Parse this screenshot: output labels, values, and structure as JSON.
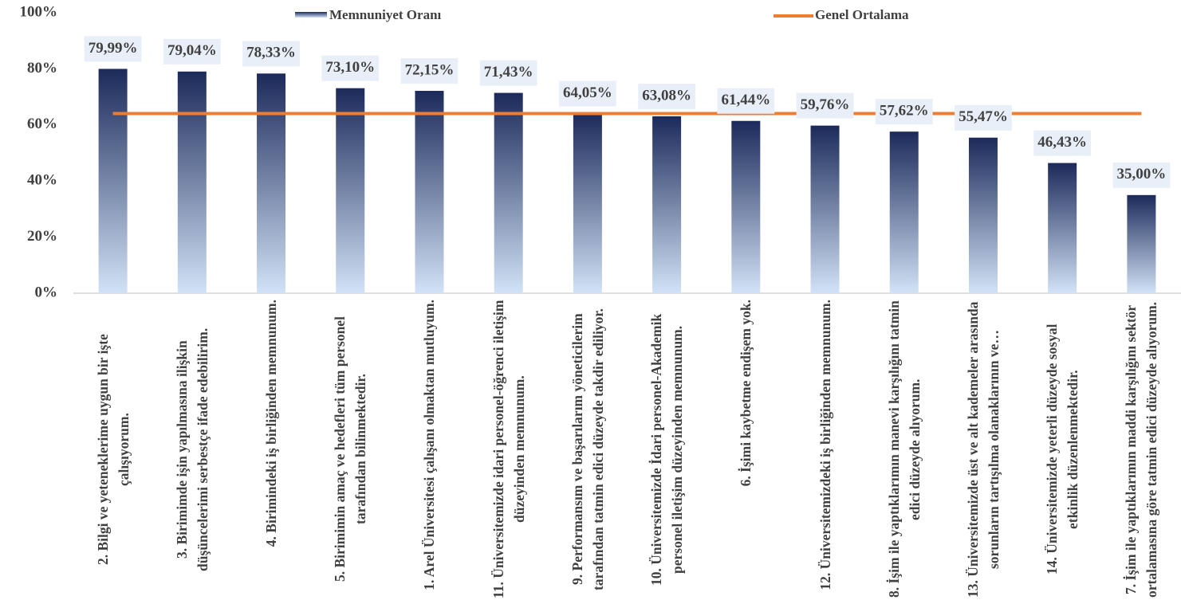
{
  "chart_data": {
    "type": "bar",
    "categories": [
      "2. Bilgi ve yeteneklerime uygun bir işte çalışıyorum.",
      "3. Birimimde işin yapılmasına ilişkin düşüncelerimi serbestçe ifade edebilirim.",
      "4. Birimindeki iş birliğinden memnunum.",
      "5. Birimimin amaç ve hedefleri tüm personel tarafından bilinmektedir.",
      "1. Arel Üniversitesi çalışanı olmaktan mutluyum.",
      "11. Üniversitemizde idari personel-öğrenci iletişim düzeyinden memnunum.",
      "9. Performansım ve başarılarım yöneticilerim tarafından tatmin edici düzeyde takdir ediliyor.",
      "10. Üniversitemizde İdari personel-Akademik personel iletişim düzeyinden memnunum.",
      "6. İşimi kaybetme endişem yok.",
      "12. Üniversitemizdeki iş birliğinden memnunum.",
      "8. İşim ile yaptıklarımın manevi karşılığını tatmin edici düzeyde alıyorum.",
      "13. Üniversitemizde üst ve alt kademeler arasında sorunların tartışılma olanaklarının ve…",
      "14. Üniversitemizde yeterli düzeyde sosyal etkinlik düzenlenmektedir.",
      "7. İşim ile yaptıklarımın maddi karşılığını sektör ortalamasına göre tatmin edici düzeyde alıyorum."
    ],
    "series": [
      {
        "name": "Memnuniyet Oranı",
        "type": "bar",
        "gradient": [
          "#1b2a5a",
          "#d2e2f6"
        ],
        "values": [
          79.99,
          79.04,
          78.33,
          73.1,
          72.15,
          71.43,
          64.05,
          63.08,
          61.44,
          59.76,
          57.62,
          55.47,
          46.43,
          35.0
        ],
        "value_labels": [
          "79,99%",
          "79,04%",
          "78,33%",
          "73,10%",
          "72,15%",
          "71,43%",
          "64,05%",
          "63,08%",
          "61,44%",
          "59,76%",
          "57,62%",
          "55,47%",
          "46,43%",
          "35,00%"
        ]
      },
      {
        "name": "Genel Ortalama",
        "type": "line",
        "color": "#ed7d31",
        "values": [
          64.06,
          64.06,
          64.06,
          64.06,
          64.06,
          64.06,
          64.06,
          64.06,
          64.06,
          64.06,
          64.06,
          64.06,
          64.06,
          64.06
        ]
      }
    ],
    "ylim": [
      0,
      100
    ],
    "yticks": [
      {
        "value": 0,
        "label": "0%"
      },
      {
        "value": 20,
        "label": "20%"
      },
      {
        "value": 40,
        "label": "40%"
      },
      {
        "value": 60,
        "label": "60%"
      },
      {
        "value": 80,
        "label": "80%"
      },
      {
        "value": 100,
        "label": "100%"
      }
    ]
  }
}
